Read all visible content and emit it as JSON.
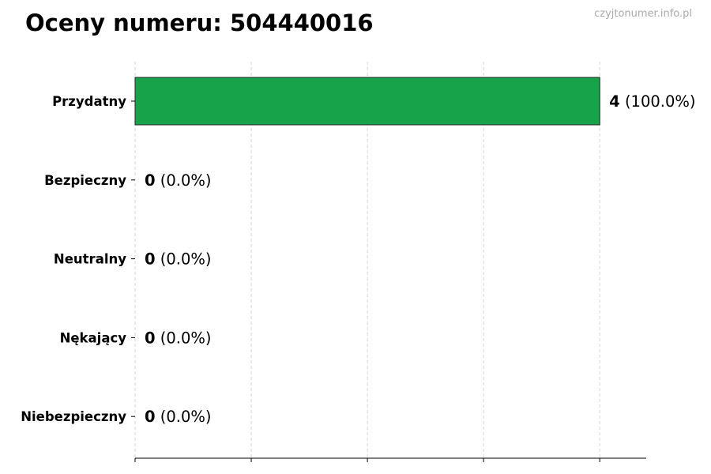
{
  "title": "Oceny numeru: 504440016",
  "watermark": "czyjtonumer.info.pl",
  "chart_data": {
    "type": "bar",
    "orientation": "horizontal",
    "categories": [
      "Przydatny",
      "Bezpieczny",
      "Neutralny",
      "Nękający",
      "Niebezpieczny"
    ],
    "values": [
      4,
      0,
      0,
      0,
      0
    ],
    "labels": [
      "(100.0%)",
      "(0.0%)",
      "(0.0%)",
      "(0.0%)",
      "(0.0%)"
    ],
    "xlim": [
      0,
      4.4
    ],
    "xticks": [
      0,
      1,
      2,
      3,
      4
    ],
    "xtick_labels_shown": false,
    "grid": "x dashed",
    "bar_color": "#16a34a",
    "xlabel": "",
    "ylabel": ""
  }
}
